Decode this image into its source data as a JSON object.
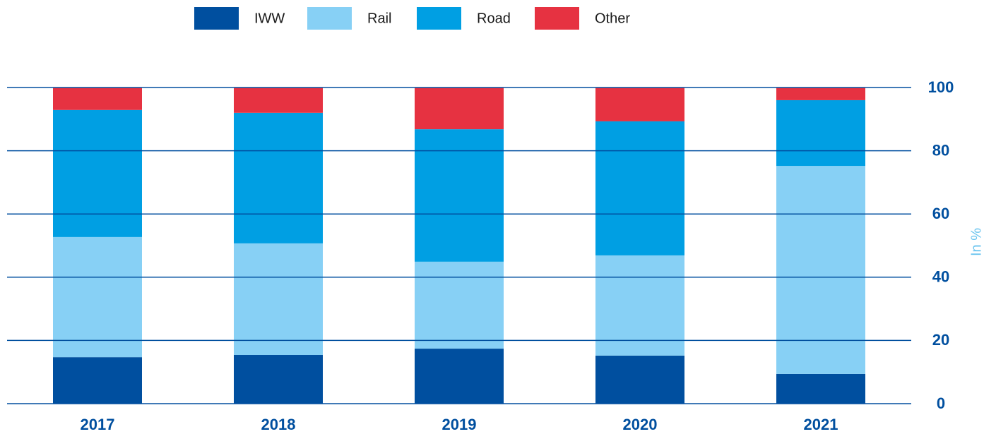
{
  "chart_data": {
    "type": "stacked_bar",
    "categories": [
      "2017",
      "2018",
      "2019",
      "2020",
      "2021"
    ],
    "series": [
      {
        "name": "IWW",
        "color": "#004f9f",
        "values": [
          14.7,
          15.4,
          17.4,
          15.2,
          9.4
        ]
      },
      {
        "name": "Rail",
        "color": "#87d0f5",
        "values": [
          38.0,
          35.3,
          27.5,
          31.7,
          65.8
        ]
      },
      {
        "name": "Road",
        "color": "#009fe3",
        "values": [
          40.2,
          41.3,
          41.9,
          42.4,
          20.8
        ]
      },
      {
        "name": "Other",
        "color": "#e63241",
        "values": [
          7.1,
          8.0,
          13.2,
          10.7,
          4.0
        ]
      }
    ],
    "y_label": "In %",
    "ylim": [
      0,
      100
    ],
    "yticks": [
      0,
      20,
      40,
      60,
      80,
      100
    ],
    "grid": true,
    "legend": "top"
  }
}
